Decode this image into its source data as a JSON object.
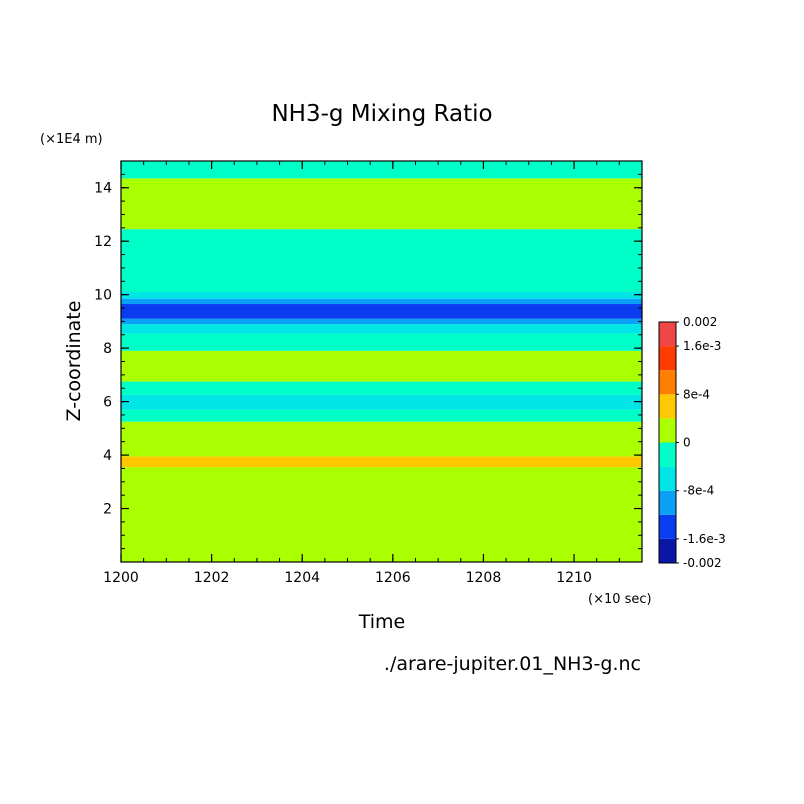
{
  "chart_data": {
    "type": "heatmap",
    "title": "NH3-g Mixing Ratio",
    "xlabel": "Time",
    "ylabel": "Z-coordinate",
    "x_unit_note": "(×10 sec)",
    "y_unit_note": "(×1E4 m)",
    "xlim": [
      1200,
      1211.5
    ],
    "ylim": [
      0,
      15
    ],
    "x_ticks": [
      "1200",
      "1202",
      "1204",
      "1206",
      "1208",
      "1210"
    ],
    "x_tick_values": [
      1200,
      1202,
      1204,
      1206,
      1208,
      1210
    ],
    "y_ticks": [
      "2",
      "4",
      "6",
      "8",
      "10",
      "12",
      "14"
    ],
    "y_tick_values": [
      2,
      4,
      6,
      8,
      10,
      12,
      14
    ],
    "bands": [
      {
        "y0": 0.0,
        "y1": 3.55,
        "level": 5
      },
      {
        "y0": 3.55,
        "y1": 3.95,
        "level": 6
      },
      {
        "y0": 3.95,
        "y1": 5.25,
        "level": 5
      },
      {
        "y0": 5.25,
        "y1": 5.7,
        "level": 4
      },
      {
        "y0": 5.7,
        "y1": 6.25,
        "level": 3
      },
      {
        "y0": 6.25,
        "y1": 6.75,
        "level": 4
      },
      {
        "y0": 6.75,
        "y1": 7.9,
        "level": 5
      },
      {
        "y0": 7.9,
        "y1": 8.55,
        "level": 4
      },
      {
        "y0": 8.55,
        "y1": 8.9,
        "level": 3
      },
      {
        "y0": 8.9,
        "y1": 9.1,
        "level": 2
      },
      {
        "y0": 9.1,
        "y1": 9.65,
        "level": 1
      },
      {
        "y0": 9.65,
        "y1": 9.85,
        "level": 2
      },
      {
        "y0": 9.85,
        "y1": 10.1,
        "level": 3
      },
      {
        "y0": 10.1,
        "y1": 12.45,
        "level": 4
      },
      {
        "y0": 12.45,
        "y1": 14.35,
        "level": 5
      },
      {
        "y0": 14.35,
        "y1": 15.0,
        "level": 4
      }
    ],
    "colorbar": {
      "range": [
        -0.002,
        0.002
      ],
      "colors": [
        "#0a16a6",
        "#0a3df0",
        "#0aa0f5",
        "#00e6e6",
        "#00ffc8",
        "#aaff00",
        "#ffc800",
        "#ff8000",
        "#ff3c00",
        "#f04646"
      ],
      "labels": [
        "0.002",
        "1.6e-3",
        "8e-4",
        "0",
        "-8e-4",
        "-1.6e-3",
        "-0.002"
      ],
      "label_values": [
        0.002,
        0.0016,
        0.0008,
        0,
        -0.0008,
        -0.0016,
        -0.002
      ]
    },
    "legend": "right"
  },
  "footer_filename": "./arare-jupiter.01_NH3-g.nc"
}
